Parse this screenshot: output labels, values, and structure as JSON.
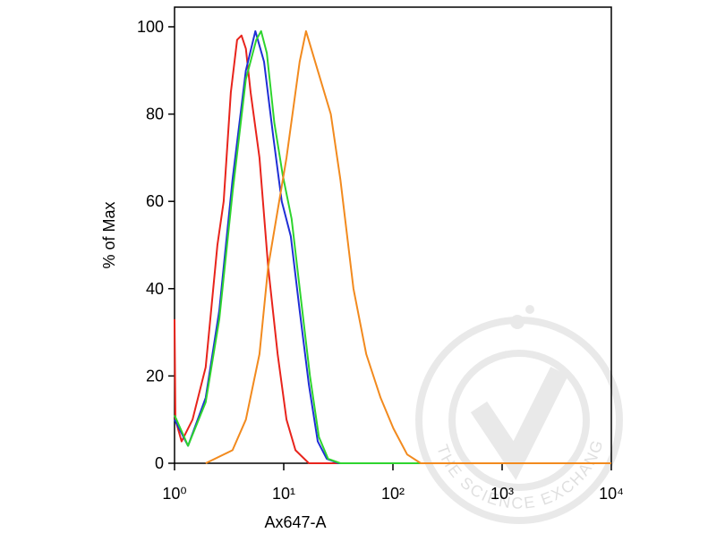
{
  "chart_data": {
    "type": "line",
    "xlabel": "Ax647-A",
    "ylabel": "% of Max",
    "xscale": "log",
    "xlim": [
      1,
      10000
    ],
    "ylim": [
      0,
      104.5
    ],
    "xticks": [
      {
        "value": 1,
        "label": "10⁰"
      },
      {
        "value": 10,
        "label": "10¹"
      },
      {
        "value": 100,
        "label": "10²"
      },
      {
        "value": 1000,
        "label": "10³"
      },
      {
        "value": 10000,
        "label": "10⁴"
      }
    ],
    "yticks": [
      0,
      20,
      40,
      60,
      80,
      100
    ],
    "watermark": "THE SCIENCE EXCHANGE NETWORK",
    "series": [
      {
        "color": "#e8241c",
        "x": [
          1.0,
          1.02,
          1.16,
          1.46,
          1.93,
          2.47,
          2.82,
          3.28,
          3.74,
          4.1,
          4.5,
          4.97,
          6.0,
          7.2,
          8.8,
          10.6,
          12.8,
          17,
          30,
          10000
        ],
        "values": [
          33,
          10,
          5,
          10,
          22,
          50,
          60,
          85,
          97,
          98,
          95,
          85,
          70,
          45,
          25,
          10,
          3,
          0,
          0,
          0
        ]
      },
      {
        "color": "#1f2fd6",
        "x": [
          1.0,
          1.33,
          1.93,
          2.57,
          3.4,
          4.5,
          5.5,
          6.6,
          8.0,
          9.6,
          11.6,
          14,
          17,
          20.5,
          24.8,
          32,
          10000
        ],
        "values": [
          10,
          4,
          15,
          35,
          65,
          90,
          99,
          92,
          75,
          60,
          52,
          35,
          18,
          5,
          1,
          0,
          0
        ]
      },
      {
        "color": "#2ed42e",
        "x": [
          1.0,
          1.33,
          1.93,
          2.57,
          3.4,
          4.5,
          5.6,
          6.2,
          7.0,
          8.2,
          9.8,
          11.8,
          14.3,
          17.4,
          21,
          25.5,
          33,
          10000
        ],
        "values": [
          11,
          4,
          14,
          33,
          62,
          88,
          97,
          99,
          94,
          78,
          66,
          56,
          38,
          20,
          6,
          1,
          0,
          0
        ]
      },
      {
        "color": "#f28a1e",
        "x": [
          1.93,
          3.4,
          4.5,
          6.0,
          7.2,
          10.6,
          14,
          16,
          20.5,
          27,
          33,
          43.5,
          57,
          77,
          101,
          135,
          180,
          10000
        ],
        "values": [
          0,
          3,
          10,
          25,
          45,
          70,
          92,
          99,
          90,
          80,
          65,
          40,
          25,
          15,
          8,
          2,
          0,
          0
        ]
      }
    ]
  }
}
